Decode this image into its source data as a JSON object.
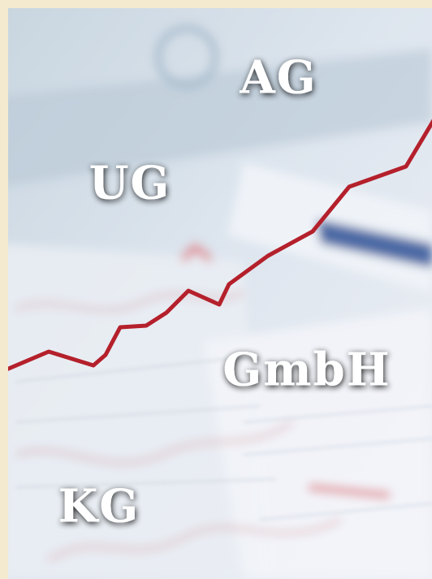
{
  "labels": [
    "AG",
    "UG",
    "GmbH",
    "KG"
  ]
}
